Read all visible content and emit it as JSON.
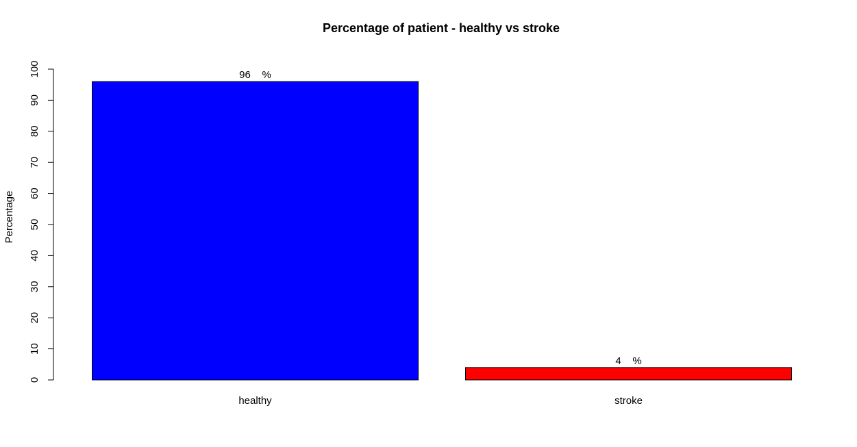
{
  "chart_data": {
    "type": "bar",
    "title": "Percentage of patient - healthy vs stroke",
    "xlabel": "",
    "ylabel": "Percentage",
    "ylim": [
      0,
      100
    ],
    "yticks": [
      0,
      10,
      20,
      30,
      40,
      50,
      60,
      70,
      80,
      90,
      100
    ],
    "categories": [
      "healthy",
      "stroke"
    ],
    "values": [
      96,
      4
    ],
    "data_labels": [
      "96    %",
      "4    %"
    ],
    "colors": [
      "#0000ff",
      "#ff0000"
    ],
    "grid": false,
    "legend": "none"
  }
}
